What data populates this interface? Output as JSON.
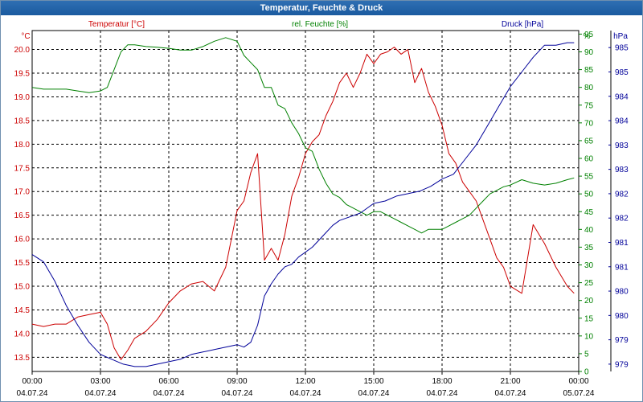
{
  "window": {
    "title": "Temperatur, Feuchte & Druck"
  },
  "colors": {
    "temperature": "#cc0000",
    "humidity": "#008000",
    "pressure": "#000099",
    "titlebar": "#1f62a8",
    "grid": "#000000"
  },
  "chart_data": {
    "type": "line",
    "title": "Temperatur, Feuchte & Druck",
    "x_ticks": [
      {
        "time": "00:00",
        "date": "04.07.24"
      },
      {
        "time": "03:00",
        "date": "04.07.24"
      },
      {
        "time": "06:00",
        "date": "04.07.24"
      },
      {
        "time": "09:00",
        "date": "04.07.24"
      },
      {
        "time": "12:00",
        "date": "04.07.24"
      },
      {
        "time": "15:00",
        "date": "04.07.24"
      },
      {
        "time": "18:00",
        "date": "04.07.24"
      },
      {
        "time": "21:00",
        "date": "04.07.24"
      },
      {
        "time": "00:00",
        "date": "05.07.24"
      }
    ],
    "x_range_hours": [
      0,
      24
    ],
    "axes": {
      "temperature": {
        "label": "Temperatur [°C]",
        "unit": "°C",
        "min": 13.2,
        "max": 20.4,
        "ticks": [
          "13.5",
          "14.0",
          "14.5",
          "15.0",
          "15.5",
          "16.0",
          "16.5",
          "17.0",
          "17.5",
          "18.0",
          "18.5",
          "19.0",
          "19.5",
          "20.0"
        ]
      },
      "humidity": {
        "label": "rel. Feuchte [%]",
        "unit": "%",
        "min": 0,
        "max": 96,
        "ticks": [
          "0",
          "5",
          "10",
          "15",
          "20",
          "25",
          "30",
          "35",
          "40",
          "45",
          "50",
          "55",
          "60",
          "65",
          "70",
          "75",
          "80",
          "85",
          "90",
          "95"
        ]
      },
      "pressure": {
        "label": "Druck [hPa]",
        "unit": "hPa",
        "min": 978.85,
        "max": 985.85,
        "ticks": [
          "979",
          "979",
          "980",
          "980",
          "981",
          "981",
          "982",
          "982",
          "983",
          "983",
          "984",
          "984",
          "985",
          "985"
        ]
      }
    },
    "series": [
      {
        "name": "Temperatur",
        "axis": "temperature",
        "x": [
          0,
          0.5,
          1,
          1.5,
          2,
          2.5,
          3,
          3.3,
          3.6,
          3.9,
          4.2,
          4.5,
          5,
          5.5,
          6,
          6.5,
          7,
          7.5,
          8,
          8.5,
          9,
          9.3,
          9.6,
          9.9,
          10.2,
          10.5,
          10.8,
          11.1,
          11.4,
          11.7,
          12,
          12.3,
          12.6,
          12.9,
          13.2,
          13.5,
          13.8,
          14.1,
          14.4,
          14.7,
          15,
          15.3,
          15.6,
          15.9,
          16.2,
          16.5,
          16.8,
          17.1,
          17.4,
          17.7,
          18,
          18.3,
          18.6,
          18.9,
          19.2,
          19.5,
          19.8,
          20.1,
          20.4,
          20.7,
          21,
          21.5,
          22,
          22.5,
          23,
          23.5,
          23.8
        ],
        "values": [
          14.2,
          14.15,
          14.2,
          14.2,
          14.35,
          14.4,
          14.45,
          14.2,
          13.7,
          13.45,
          13.65,
          13.9,
          14.05,
          14.3,
          14.65,
          14.9,
          15.05,
          15.1,
          14.9,
          15.4,
          16.6,
          16.8,
          17.4,
          17.8,
          15.55,
          15.8,
          15.55,
          16.1,
          16.9,
          17.3,
          17.8,
          18.05,
          18.2,
          18.6,
          18.9,
          19.3,
          19.5,
          19.2,
          19.5,
          19.9,
          19.7,
          19.9,
          19.95,
          20.05,
          19.9,
          20.0,
          19.3,
          19.6,
          19.1,
          18.8,
          18.4,
          17.8,
          17.6,
          17.2,
          17.0,
          16.8,
          16.4,
          16.0,
          15.6,
          15.4,
          15.0,
          14.85,
          16.3,
          15.9,
          15.4,
          15.0,
          14.85
        ]
      },
      {
        "name": "rel. Feuchte",
        "axis": "humidity",
        "x": [
          0,
          0.5,
          1,
          1.5,
          2,
          2.5,
          3,
          3.3,
          3.6,
          3.9,
          4.2,
          4.5,
          5,
          5.5,
          6,
          6.5,
          7,
          7.5,
          8,
          8.5,
          9,
          9.3,
          9.6,
          9.9,
          10.2,
          10.5,
          10.8,
          11.1,
          11.4,
          11.7,
          12,
          12.3,
          12.6,
          12.9,
          13.2,
          13.5,
          13.8,
          14.1,
          14.4,
          14.7,
          15,
          15.3,
          15.6,
          15.9,
          16.2,
          16.5,
          16.8,
          17.1,
          17.4,
          17.7,
          18,
          18.3,
          18.6,
          18.9,
          19.2,
          19.5,
          19.8,
          20.1,
          20.4,
          20.7,
          21,
          21.5,
          22,
          22.5,
          23,
          23.5,
          23.8
        ],
        "values": [
          80,
          79.5,
          79.5,
          79.5,
          79,
          78.5,
          79,
          80,
          85,
          90,
          92,
          92,
          91.5,
          91.3,
          91,
          90.5,
          90.5,
          91.5,
          93,
          94,
          93,
          89,
          87,
          85,
          80,
          80,
          75,
          74,
          70,
          67,
          63,
          62,
          57,
          53,
          50,
          49,
          47,
          46,
          45,
          44,
          45,
          45,
          44,
          43,
          42,
          41,
          40,
          39,
          40,
          40,
          40,
          41,
          42,
          43,
          44,
          46,
          48,
          50,
          51,
          52,
          52.5,
          54,
          53,
          52.5,
          53,
          54,
          54.5
        ]
      },
      {
        "name": "Druck",
        "axis": "pressure",
        "x": [
          0,
          0.5,
          1,
          1.5,
          2,
          2.5,
          3,
          3.5,
          4,
          4.5,
          5,
          5.5,
          6,
          6.5,
          7,
          7.5,
          8,
          8.5,
          9,
          9.3,
          9.6,
          9.9,
          10.2,
          10.5,
          10.8,
          11.1,
          11.4,
          11.7,
          12,
          12.3,
          12.6,
          12.9,
          13.2,
          13.5,
          13.8,
          14.1,
          14.4,
          14.7,
          15,
          15.5,
          16,
          16.5,
          17,
          17.5,
          18,
          18.5,
          19,
          19.5,
          20,
          20.5,
          21,
          21.5,
          22,
          22.5,
          23,
          23.5,
          23.8
        ],
        "values": [
          981.25,
          981.1,
          980.7,
          980.2,
          979.8,
          979.45,
          979.2,
          979.1,
          979.0,
          978.95,
          978.95,
          979.0,
          979.05,
          979.1,
          979.2,
          979.25,
          979.3,
          979.35,
          979.4,
          979.35,
          979.45,
          979.8,
          980.4,
          980.65,
          980.85,
          981.0,
          981.05,
          981.2,
          981.3,
          981.4,
          981.55,
          981.7,
          981.85,
          981.95,
          982.0,
          982.05,
          982.1,
          982.2,
          982.3,
          982.35,
          982.45,
          982.5,
          982.55,
          982.65,
          982.8,
          982.9,
          983.2,
          983.5,
          983.9,
          984.3,
          984.7,
          985.0,
          985.3,
          985.55,
          985.55,
          985.6,
          985.6
        ]
      }
    ]
  }
}
